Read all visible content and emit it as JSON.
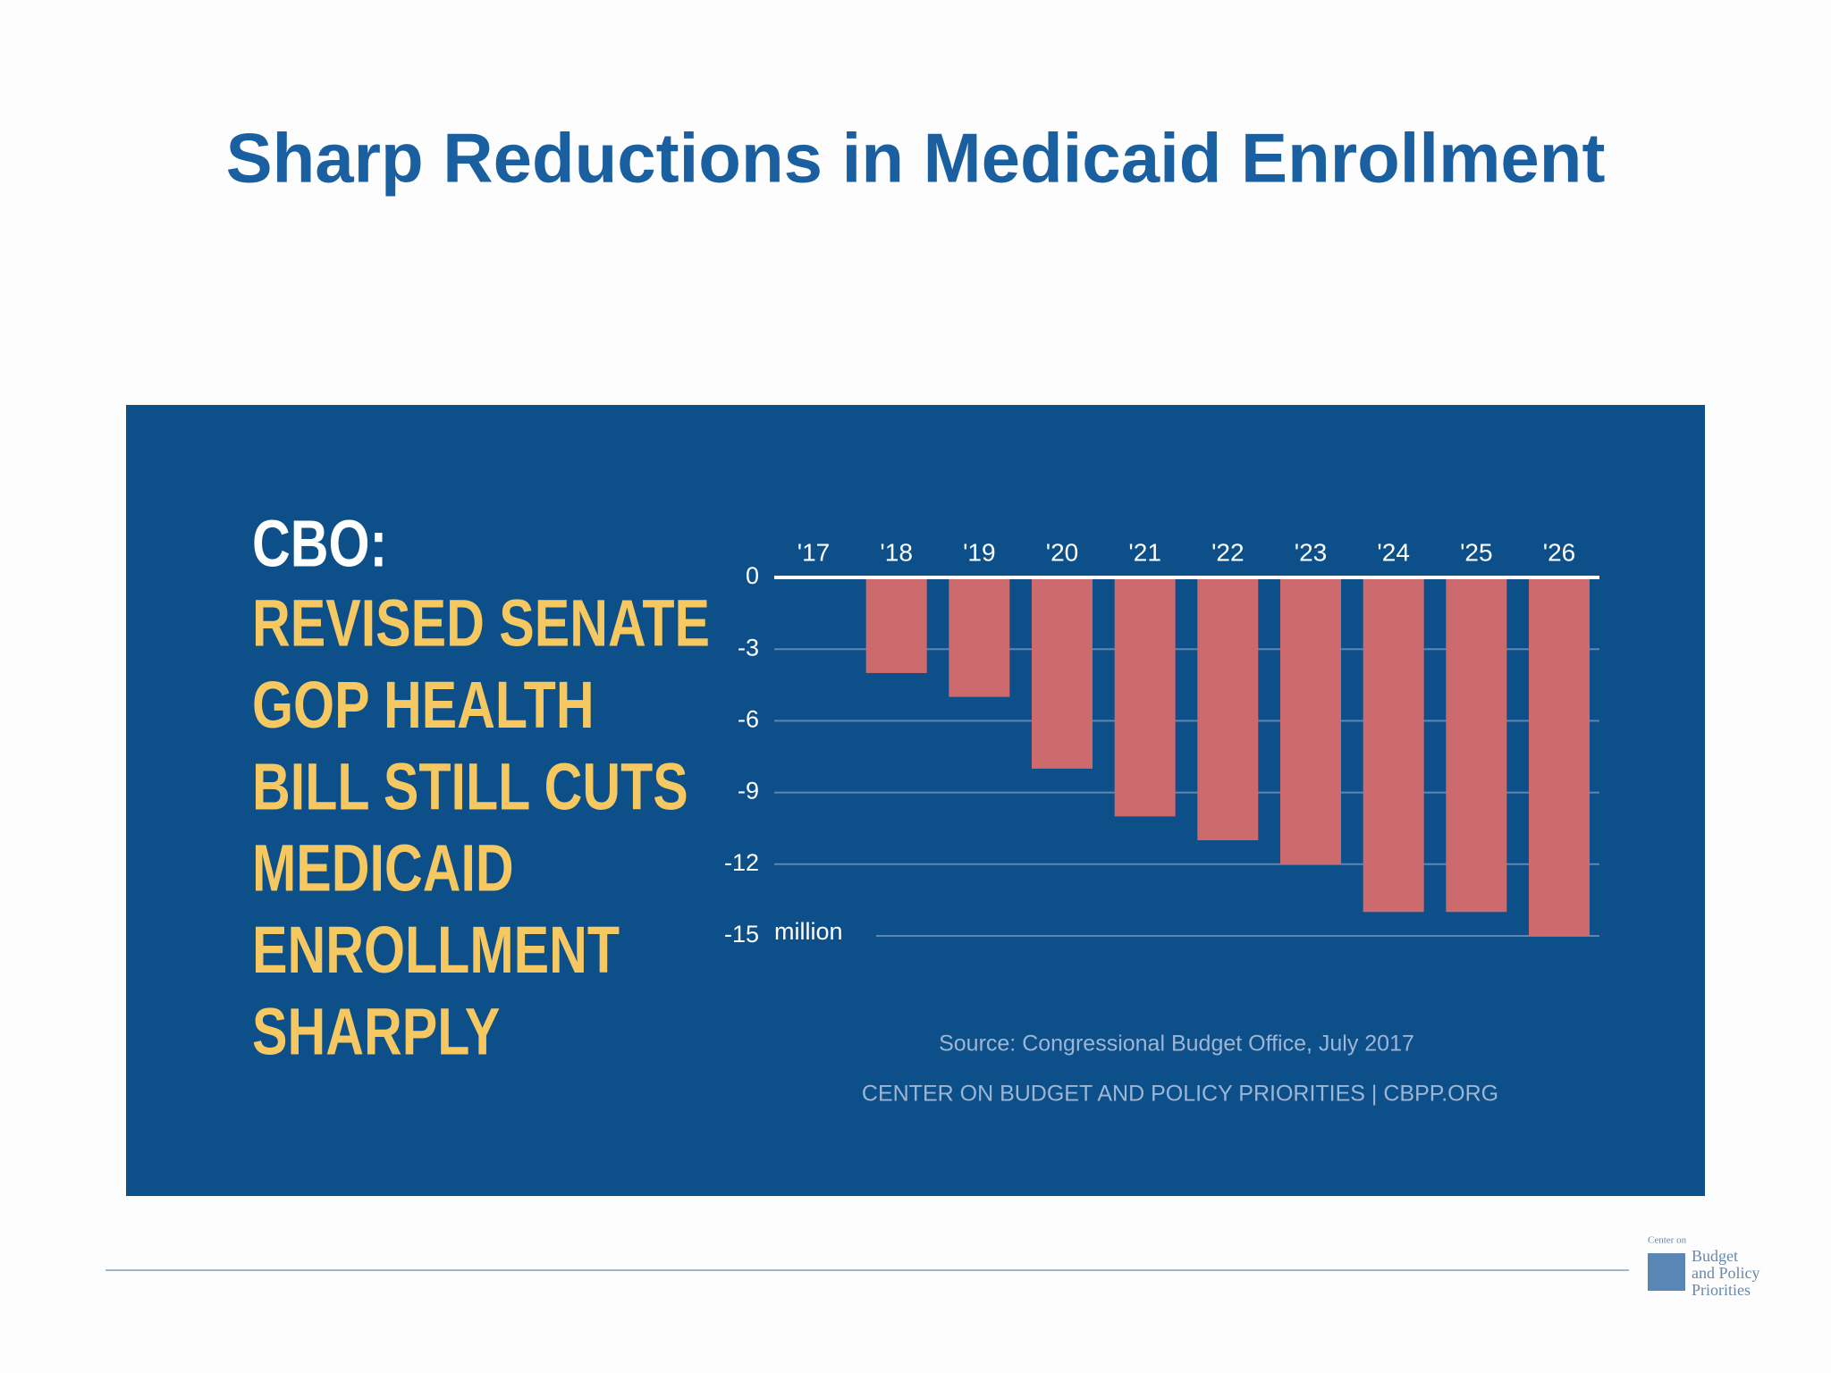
{
  "slide_title": "Sharp Reductions in Medicaid Enrollment",
  "chart_data": {
    "type": "bar",
    "heading": "CBO:",
    "subheading_lines": [
      "REVISED SENATE",
      "GOP HEALTH",
      "BILL STILL CUTS",
      "MEDICAID",
      "ENROLLMENT",
      "SHARPLY"
    ],
    "categories": [
      "'17",
      "'18",
      "'19",
      "'20",
      "'21",
      "'22",
      "'23",
      "'24",
      "'25",
      "'26"
    ],
    "values": [
      0,
      -4,
      -5,
      -8,
      -10,
      -11,
      -12,
      -14,
      -14,
      -15
    ],
    "color": "#cd6a6e",
    "y_unit": "million",
    "ylim": [
      -15,
      0
    ],
    "yticks": [
      0,
      -3,
      -6,
      -9,
      -12,
      -15
    ],
    "grid": true,
    "source": "Source: Congressional Budget Office, July 2017",
    "credit": "CENTER ON BUDGET AND POLICY PRIORITIES | CBPP.ORG"
  },
  "logo_lines": [
    "Center on",
    "Budget",
    "and Policy",
    "Priorities"
  ]
}
